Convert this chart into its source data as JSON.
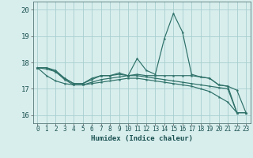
{
  "xlabel": "Humidex (Indice chaleur)",
  "background_color": "#d8eeed",
  "grid_color": "#a8cece",
  "line_color": "#2d7068",
  "xlim": [
    -0.5,
    23.5
  ],
  "ylim": [
    15.7,
    20.3
  ],
  "yticks": [
    16,
    17,
    18,
    19,
    20
  ],
  "xticks": [
    0,
    1,
    2,
    3,
    4,
    5,
    6,
    7,
    8,
    9,
    10,
    11,
    12,
    13,
    14,
    15,
    16,
    17,
    18,
    19,
    20,
    21,
    22,
    23
  ],
  "series": [
    [
      17.8,
      17.8,
      17.7,
      17.4,
      17.2,
      17.2,
      17.4,
      17.5,
      17.5,
      17.6,
      17.5,
      18.15,
      17.7,
      17.55,
      18.9,
      19.85,
      19.15,
      17.55,
      17.45,
      17.4,
      17.15,
      17.1,
      16.95,
      16.1
    ],
    [
      17.8,
      17.8,
      17.65,
      17.4,
      17.2,
      17.2,
      17.35,
      17.5,
      17.5,
      17.55,
      17.5,
      17.55,
      17.5,
      17.5,
      17.5,
      17.5,
      17.5,
      17.5,
      17.45,
      17.4,
      17.15,
      17.1,
      16.1,
      16.1
    ],
    [
      17.8,
      17.75,
      17.65,
      17.35,
      17.15,
      17.15,
      17.25,
      17.35,
      17.4,
      17.45,
      17.5,
      17.5,
      17.45,
      17.4,
      17.35,
      17.3,
      17.25,
      17.2,
      17.15,
      17.1,
      17.05,
      17.0,
      16.1,
      16.1
    ],
    [
      17.8,
      17.5,
      17.3,
      17.2,
      17.15,
      17.15,
      17.2,
      17.25,
      17.3,
      17.35,
      17.4,
      17.4,
      17.35,
      17.3,
      17.25,
      17.2,
      17.15,
      17.1,
      17.0,
      16.9,
      16.7,
      16.5,
      16.1,
      16.1
    ]
  ],
  "xlabel_fontsize": 6.5,
  "tick_fontsize": 5.5,
  "ytick_fontsize": 6.5
}
